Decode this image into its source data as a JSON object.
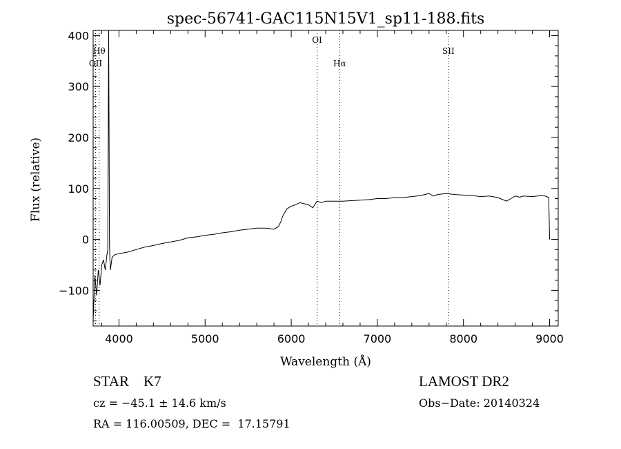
{
  "chart_data": {
    "type": "line",
    "title": "spec-56741-GAC115N15V1_sp11-188.fits",
    "xlabel": "Wavelength (Å)",
    "ylabel": "Flux (relative)",
    "xlim": [
      3700,
      9100
    ],
    "ylim": [
      -170,
      410
    ],
    "xticks": [
      4000,
      5000,
      6000,
      7000,
      8000,
      9000
    ],
    "yticks": [
      -100,
      0,
      100,
      200,
      300,
      400
    ],
    "grid": false,
    "series": [
      {
        "x": [
          3700,
          3720,
          3740,
          3760,
          3780,
          3800,
          3820,
          3840,
          3860,
          3870,
          3880,
          3885,
          3890,
          3895,
          3900,
          3920,
          3950,
          4000,
          4100,
          4200,
          4300,
          4400,
          4500,
          4600,
          4700,
          4800,
          4900,
          5000,
          5100,
          5200,
          5300,
          5400,
          5500,
          5600,
          5700,
          5800,
          5850,
          5880,
          5900,
          5950,
          6000,
          6050,
          6100,
          6150,
          6200,
          6250,
          6300,
          6350,
          6400,
          6500,
          6600,
          6700,
          6800,
          6900,
          7000,
          7100,
          7200,
          7300,
          7400,
          7500,
          7550,
          7600,
          7650,
          7700,
          7800,
          7900,
          8000,
          8100,
          8200,
          8300,
          8400,
          8500,
          8550,
          8600,
          8650,
          8700,
          8800,
          8900,
          8950,
          8990,
          9000
        ],
        "values": [
          -160,
          -70,
          -110,
          -60,
          -90,
          -50,
          -40,
          -60,
          -30,
          -20,
          410,
          200,
          -10,
          -40,
          -60,
          -35,
          -30,
          -28,
          -25,
          -20,
          -15,
          -12,
          -8,
          -5,
          -2,
          3,
          5,
          8,
          10,
          13,
          15,
          18,
          20,
          22,
          22,
          20,
          25,
          35,
          45,
          60,
          65,
          68,
          72,
          70,
          68,
          62,
          75,
          72,
          75,
          75,
          75,
          76,
          77,
          78,
          80,
          80,
          82,
          82,
          84,
          86,
          88,
          90,
          85,
          88,
          90,
          88,
          87,
          86,
          84,
          85,
          82,
          75,
          80,
          85,
          83,
          85,
          84,
          86,
          85,
          82,
          0
        ]
      }
    ],
    "lines": [
      {
        "x": 3728,
        "label": "OII"
      },
      {
        "x": 3770,
        "label": "Hθ"
      },
      {
        "x": 6300,
        "label": "OI"
      },
      {
        "x": 6563,
        "label": "Hα"
      },
      {
        "x": 7825,
        "label": "SII"
      }
    ]
  },
  "info": {
    "object": "STAR    K7",
    "cz": "cz = −45.1 ± 14.6 km/s",
    "radec": "RA = 116.00509, DEC =  17.15791",
    "survey": "LAMOST DR2",
    "obsdate": "Obs−Date: 20140324"
  }
}
